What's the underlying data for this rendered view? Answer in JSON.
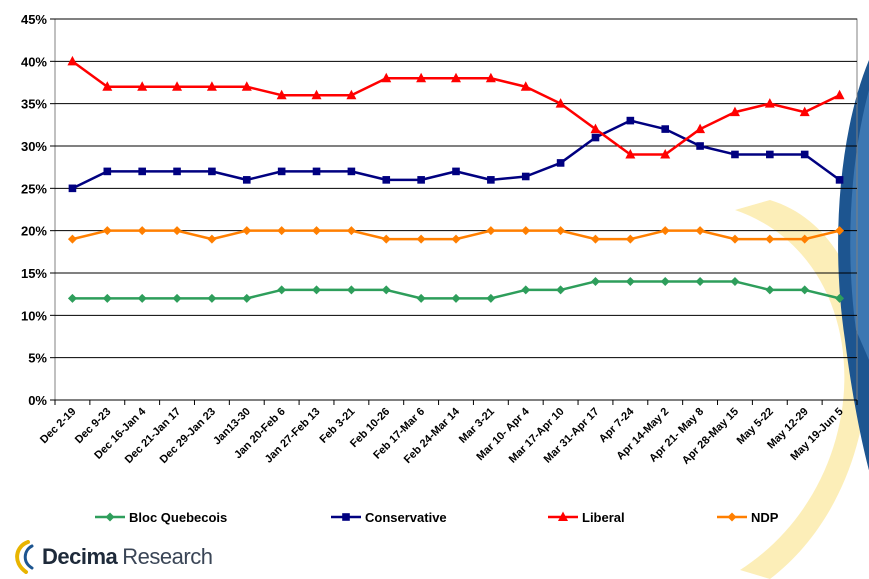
{
  "chart_data": {
    "type": "line",
    "categories": [
      "Dec 2-19",
      "Dec 9-23",
      "Dec 16-Jan 4",
      "Dec 21-Jan 17",
      "Dec 29-Jan 23",
      "Jan13-30",
      "Jan 20-Feb 6",
      "Jan 27-Feb 13",
      "Feb 3-21",
      "Feb 10-26",
      "Feb 17-Mar 6",
      "Feb 24-Mar 14",
      "Mar 3-21",
      "Mar 10- Apr 4",
      "Mar 17-Apr 10",
      "Mar 31-Apr 17",
      "Apr 7-24",
      "Apr 14-May 2",
      "Apr 21- May 8",
      "Apr 28-May 15",
      "May 5-22",
      "May 12-29",
      "May 19-Jun 5"
    ],
    "y_ticks": [
      "0%",
      "5%",
      "10%",
      "15%",
      "20%",
      "25%",
      "30%",
      "35%",
      "40%",
      "45%"
    ],
    "ylim": [
      0,
      45
    ],
    "grid": true,
    "legend_position": "bottom",
    "series": [
      {
        "name": "Bloc Quebecois",
        "color": "#2e9e5b",
        "marker": "diamond",
        "values": [
          12,
          12,
          12,
          12,
          12,
          12,
          13,
          13,
          13,
          13,
          12,
          12,
          12,
          13,
          13,
          14,
          14,
          14,
          14,
          14,
          13,
          13,
          12
        ]
      },
      {
        "name": "Conservative",
        "color": "#000080",
        "marker": "square",
        "values": [
          25,
          27,
          27,
          27,
          27,
          26,
          27,
          27,
          27,
          26,
          26,
          27,
          26,
          26.4,
          28,
          31,
          33,
          32,
          30,
          29,
          29,
          29,
          26
        ]
      },
      {
        "name": "Liberal",
        "color": "#ff0000",
        "marker": "triangle",
        "values": [
          40,
          37,
          37,
          37,
          37,
          37,
          36,
          36,
          36,
          38,
          38,
          38,
          38,
          37,
          35,
          32,
          29,
          29,
          32,
          34,
          35,
          34,
          36
        ]
      },
      {
        "name": "NDP",
        "color": "#ff7f00",
        "marker": "diamond",
        "values": [
          19,
          20,
          20,
          20,
          19,
          20,
          20,
          20,
          20,
          19,
          19,
          19,
          20,
          20,
          20,
          19,
          19,
          20,
          20,
          19,
          19,
          19,
          20
        ]
      }
    ]
  },
  "brand": {
    "name": "Decima",
    "sub": "Research"
  }
}
